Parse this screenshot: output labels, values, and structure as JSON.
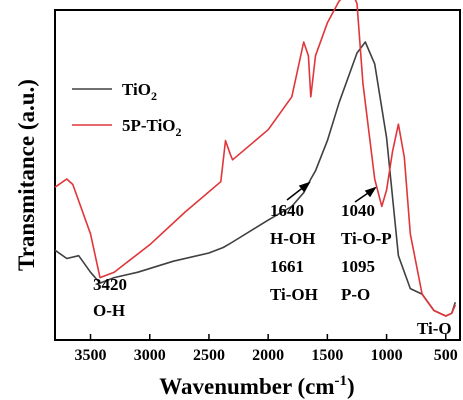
{
  "chart_data": {
    "type": "line",
    "title": "",
    "xlabel": "Wavenumber (cm",
    "xlabel_sup": "-1",
    "xlabel_close": ")",
    "ylabel": "Transmitance (a.u.)",
    "xlim": [
      3800,
      380
    ],
    "reversed_x": true,
    "y_ticks_shown": false,
    "x_ticks": [
      3500,
      3000,
      2500,
      2000,
      1500,
      1000,
      500
    ],
    "x_tick_labels": [
      "3500",
      "3000",
      "2500",
      "2000",
      "1500",
      "1000",
      "500"
    ],
    "legend_placement": "top-left",
    "series": [
      {
        "name": "TiO2",
        "name_base": "TiO",
        "name_sub": "2",
        "color": "#404040",
        "points": [
          [
            3800,
            0.76
          ],
          [
            3700,
            0.79
          ],
          [
            3600,
            0.78
          ],
          [
            3500,
            0.84
          ],
          [
            3420,
            0.88
          ],
          [
            3300,
            0.86
          ],
          [
            3100,
            0.84
          ],
          [
            2800,
            0.8
          ],
          [
            2500,
            0.77
          ],
          [
            2380,
            0.75
          ],
          [
            2340,
            0.74
          ],
          [
            2300,
            0.73
          ],
          [
            2000,
            0.65
          ],
          [
            1800,
            0.6
          ],
          [
            1700,
            0.55
          ],
          [
            1640,
            0.5
          ],
          [
            1600,
            0.47
          ],
          [
            1500,
            0.36
          ],
          [
            1400,
            0.22
          ],
          [
            1250,
            0.04
          ],
          [
            1180,
            0.0
          ],
          [
            1100,
            0.08
          ],
          [
            1000,
            0.35
          ],
          [
            900,
            0.78
          ],
          [
            800,
            0.9
          ],
          [
            700,
            0.92
          ],
          [
            600,
            0.98
          ],
          [
            500,
            1.0
          ],
          [
            450,
            0.99
          ],
          [
            420,
            0.95
          ]
        ]
      },
      {
        "name": "5P-TiO2",
        "name_base": "5P-TiO",
        "name_sub": "2",
        "color": "#e0363a",
        "points": [
          [
            3800,
            0.53
          ],
          [
            3700,
            0.5
          ],
          [
            3650,
            0.52
          ],
          [
            3500,
            0.7
          ],
          [
            3420,
            0.86
          ],
          [
            3300,
            0.84
          ],
          [
            3000,
            0.74
          ],
          [
            2700,
            0.62
          ],
          [
            2400,
            0.51
          ],
          [
            2360,
            0.36
          ],
          [
            2320,
            0.41
          ],
          [
            2300,
            0.43
          ],
          [
            2000,
            0.32
          ],
          [
            1800,
            0.2
          ],
          [
            1700,
            0.0
          ],
          [
            1660,
            0.05
          ],
          [
            1640,
            0.2
          ],
          [
            1600,
            0.05
          ],
          [
            1500,
            -0.07
          ],
          [
            1400,
            -0.15
          ],
          [
            1300,
            -0.19
          ],
          [
            1250,
            -0.14
          ],
          [
            1200,
            0.15
          ],
          [
            1100,
            0.5
          ],
          [
            1040,
            0.6
          ],
          [
            1000,
            0.54
          ],
          [
            950,
            0.4
          ],
          [
            900,
            0.3
          ],
          [
            850,
            0.42
          ],
          [
            800,
            0.7
          ],
          [
            700,
            0.92
          ],
          [
            600,
            0.98
          ],
          [
            500,
            1.0
          ],
          [
            450,
            0.99
          ],
          [
            420,
            0.96
          ]
        ]
      }
    ],
    "annotations": [
      {
        "lines": [
          "3420",
          "O-H"
        ]
      },
      {
        "lines": [
          "1640",
          "H-OH",
          "1661",
          "Ti-OH"
        ]
      },
      {
        "lines": [
          "1040",
          "Ti-O-P",
          "1095",
          "P-O"
        ]
      },
      {
        "lines": [
          "Ti-O"
        ]
      }
    ]
  }
}
